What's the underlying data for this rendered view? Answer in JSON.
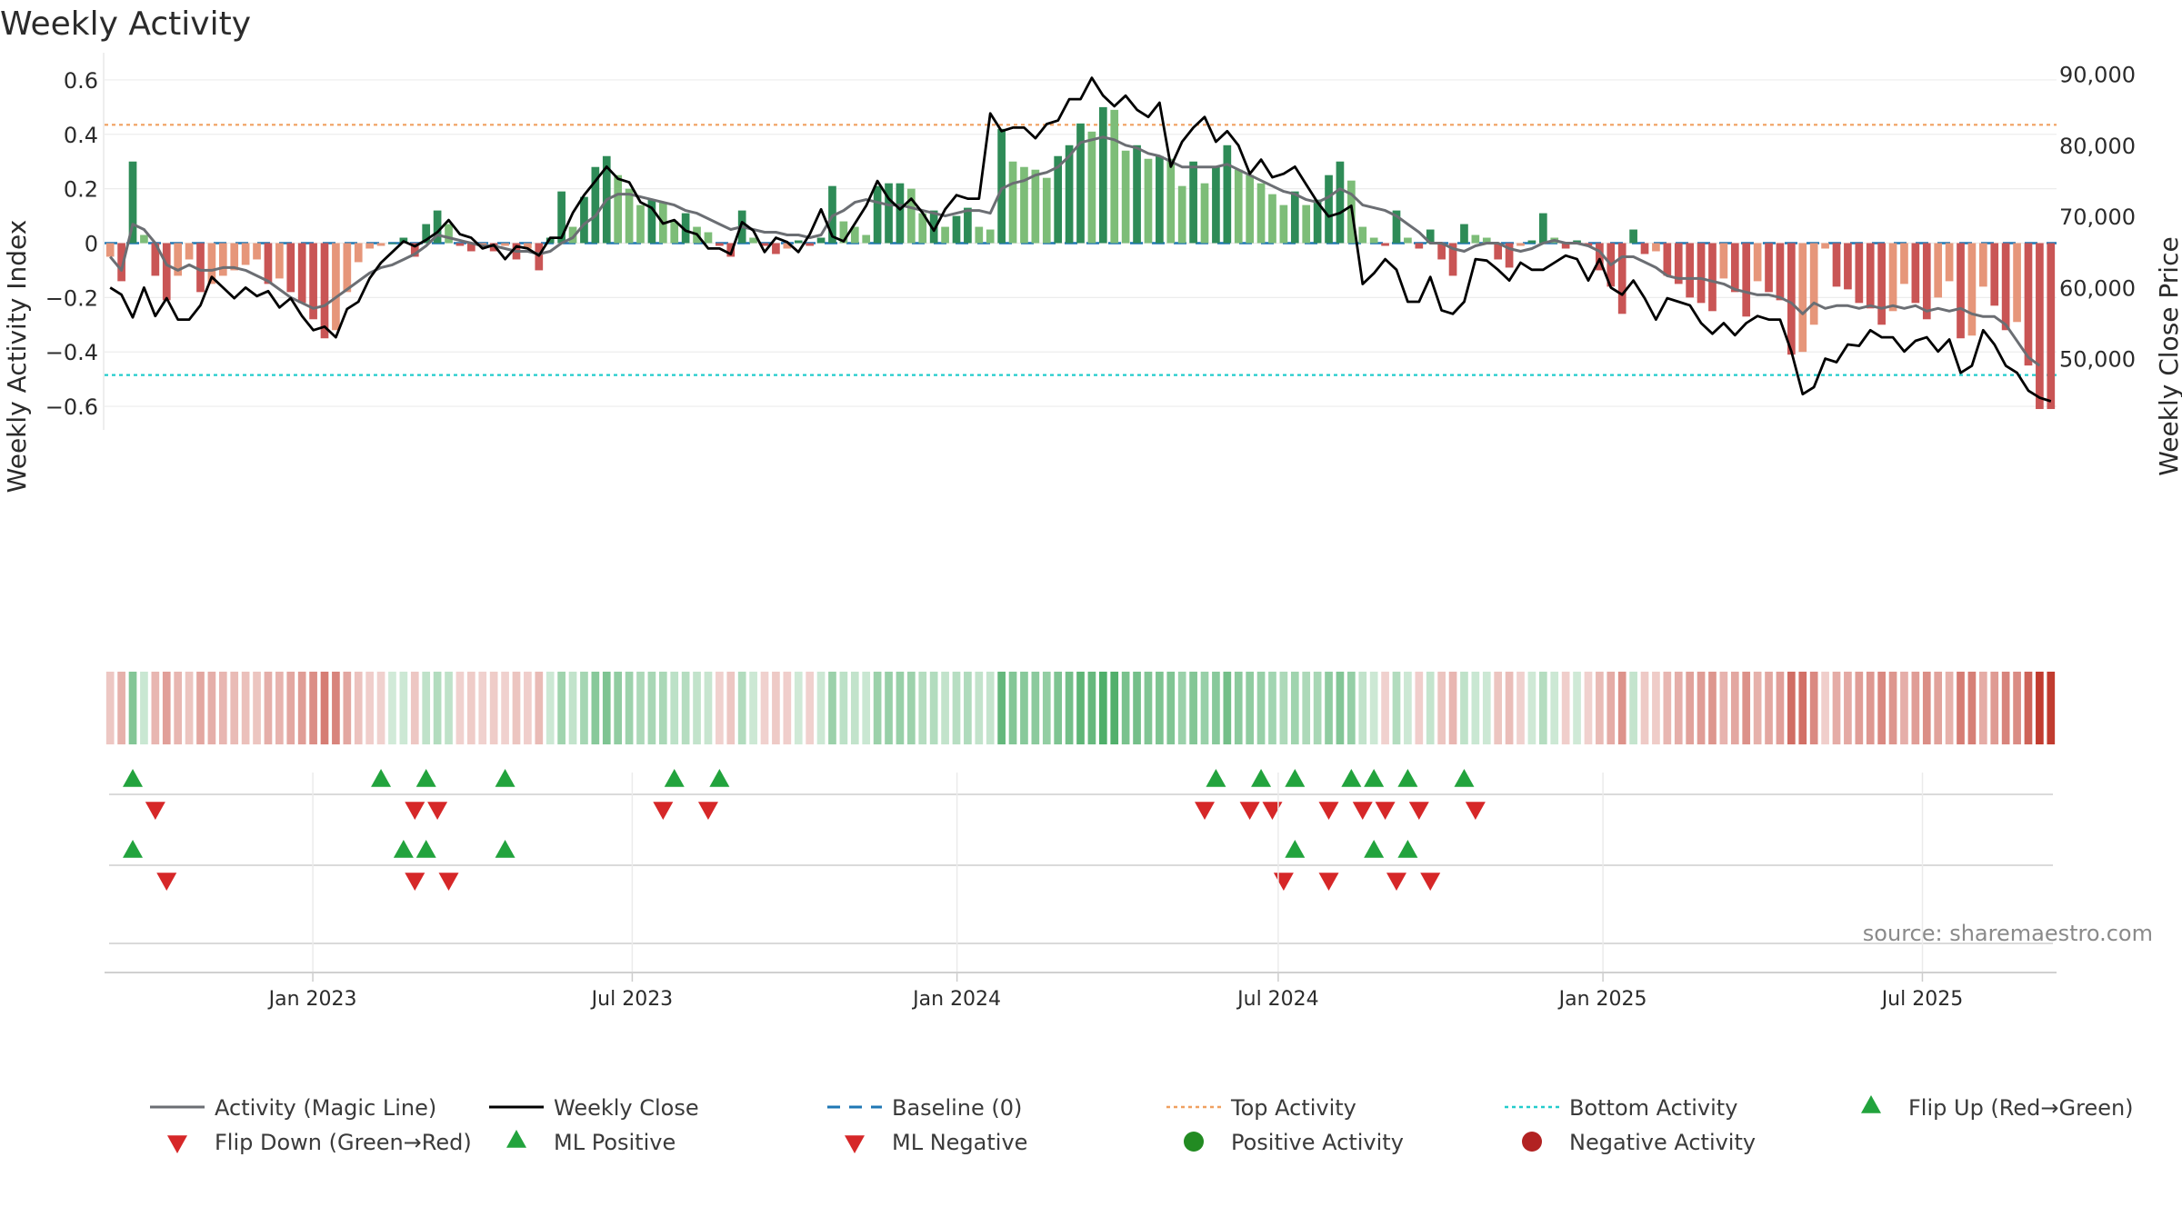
{
  "chart_data": {
    "type": "combo",
    "title": "Weekly Activity",
    "ylabel_left": "Weekly Activity Index",
    "ylabel_right": "Weekly Close Price",
    "ylim_left": [
      -0.66,
      0.66
    ],
    "ylim_right": [
      41000,
      91500
    ],
    "yticks_left": [
      0.6,
      0.4,
      0.2,
      0,
      -0.2,
      -0.4,
      -0.6
    ],
    "yticks_left_labels": [
      "0.6",
      "0.4",
      "0.2",
      "0",
      "−0.2",
      "−0.4",
      "−0.6"
    ],
    "yticks_right": [
      90000,
      80000,
      70000,
      60000,
      50000
    ],
    "yticks_right_labels": [
      "90,000",
      "80,000",
      "70,000",
      "60,000",
      "50,000"
    ],
    "x_start": "2022-09-05",
    "x_end": "2025-09-15",
    "xticks": [
      {
        "date": "2023-01-01",
        "label": "Jan 2023"
      },
      {
        "date": "2023-07-01",
        "label": "Jul 2023"
      },
      {
        "date": "2024-01-01",
        "label": "Jan 2024"
      },
      {
        "date": "2024-07-01",
        "label": "Jul 2024"
      },
      {
        "date": "2025-01-01",
        "label": "Jan 2025"
      },
      {
        "date": "2025-07-01",
        "label": "Jul 2025"
      }
    ],
    "top_activity": 0.435,
    "bottom_activity": -0.485,
    "baseline": 0,
    "colors": {
      "pos_strong": "#2e8b57",
      "pos_weak": "#7dbd78",
      "neg_strong": "#c95555",
      "neg_weak": "#e6967a",
      "magic_line": "#6b6e73",
      "close_line": "#000000",
      "baseline": "#1f77b4",
      "top_activity": "#f0a060",
      "bottom_activity": "#22cccc",
      "marker_up": "#22a33d",
      "marker_down": "#d62728",
      "positive_dot": "#228b22",
      "negative_dot": "#b22222"
    },
    "activity": [
      -0.05,
      -0.14,
      0.3,
      0.03,
      -0.12,
      -0.21,
      -0.12,
      -0.06,
      -0.18,
      -0.15,
      -0.12,
      -0.1,
      -0.08,
      -0.06,
      -0.15,
      -0.13,
      -0.18,
      -0.22,
      -0.28,
      -0.35,
      -0.32,
      -0.18,
      -0.07,
      -0.02,
      -0.01,
      0,
      0.02,
      -0.05,
      0.07,
      0.12,
      0.07,
      -0.01,
      -0.03,
      -0.01,
      -0.03,
      -0.01,
      -0.06,
      -0.02,
      -0.1,
      0.02,
      0.19,
      0.06,
      0.17,
      0.28,
      0.32,
      0.25,
      0.2,
      0.14,
      0.16,
      0.15,
      0.08,
      0.11,
      0.06,
      0.04,
      -0.01,
      -0.05,
      0.12,
      0.02,
      -0.01,
      -0.04,
      -0.02,
      0.01,
      -0.01,
      0.02,
      0.21,
      0.08,
      0.06,
      0.03,
      0.21,
      0.22,
      0.22,
      0.2,
      0.11,
      0.12,
      0.06,
      0.1,
      0.13,
      0.06,
      0.05,
      0.42,
      0.3,
      0.28,
      0.27,
      0.24,
      0.32,
      0.36,
      0.44,
      0.41,
      0.5,
      0.49,
      0.34,
      0.36,
      0.31,
      0.32,
      0.31,
      0.21,
      0.3,
      0.22,
      0.28,
      0.36,
      0.27,
      0.25,
      0.22,
      0.18,
      0.14,
      0.19,
      0.14,
      0.16,
      0.25,
      0.3,
      0.23,
      0.06,
      0.02,
      -0.01,
      0.12,
      0.02,
      -0.02,
      0.05,
      -0.06,
      -0.12,
      0.07,
      0.03,
      0.02,
      -0.06,
      -0.09,
      -0.01,
      0.01,
      0.11,
      0.02,
      -0.02,
      0.01,
      -0.01,
      -0.1,
      -0.16,
      -0.26,
      0.05,
      -0.04,
      -0.03,
      -0.12,
      -0.15,
      -0.2,
      -0.22,
      -0.25,
      -0.13,
      -0.18,
      -0.27,
      -0.14,
      -0.18,
      -0.21,
      -0.41,
      -0.4,
      -0.3,
      -0.02,
      -0.16,
      -0.17,
      -0.22,
      -0.24,
      -0.3,
      -0.25,
      -0.15,
      -0.22,
      -0.28,
      -0.2,
      -0.14,
      -0.35,
      -0.34,
      -0.16,
      -0.23,
      -0.32,
      -0.29,
      -0.45,
      -0.61,
      -0.61
    ],
    "magic_line": [
      -0.05,
      -0.1,
      0.07,
      0.05,
      0.0,
      -0.08,
      -0.1,
      -0.08,
      -0.1,
      -0.1,
      -0.09,
      -0.09,
      -0.1,
      -0.12,
      -0.14,
      -0.17,
      -0.2,
      -0.22,
      -0.24,
      -0.23,
      -0.2,
      -0.17,
      -0.14,
      -0.11,
      -0.09,
      -0.08,
      -0.06,
      -0.04,
      -0.01,
      0.03,
      0.02,
      0.01,
      0.0,
      -0.01,
      -0.01,
      -0.02,
      -0.03,
      -0.03,
      -0.04,
      -0.03,
      0.0,
      0.02,
      0.07,
      0.1,
      0.16,
      0.18,
      0.18,
      0.17,
      0.16,
      0.15,
      0.14,
      0.12,
      0.11,
      0.09,
      0.07,
      0.05,
      0.06,
      0.05,
      0.04,
      0.04,
      0.03,
      0.03,
      0.02,
      0.03,
      0.1,
      0.12,
      0.15,
      0.16,
      0.15,
      0.14,
      0.14,
      0.13,
      0.12,
      0.11,
      0.1,
      0.11,
      0.12,
      0.12,
      0.11,
      0.2,
      0.22,
      0.23,
      0.25,
      0.26,
      0.28,
      0.32,
      0.37,
      0.38,
      0.39,
      0.38,
      0.36,
      0.35,
      0.33,
      0.32,
      0.3,
      0.28,
      0.28,
      0.28,
      0.28,
      0.29,
      0.27,
      0.25,
      0.23,
      0.21,
      0.19,
      0.18,
      0.16,
      0.15,
      0.17,
      0.2,
      0.18,
      0.14,
      0.13,
      0.12,
      0.1,
      0.07,
      0.04,
      0.0,
      0.0,
      -0.02,
      -0.03,
      -0.01,
      0.0,
      0.0,
      -0.02,
      -0.03,
      -0.02,
      0.0,
      0.01,
      0.0,
      0.0,
      -0.01,
      -0.03,
      -0.08,
      -0.05,
      -0.05,
      -0.07,
      -0.09,
      -0.12,
      -0.13,
      -0.13,
      -0.13,
      -0.14,
      -0.15,
      -0.17,
      -0.18,
      -0.19,
      -0.19,
      -0.2,
      -0.22,
      -0.26,
      -0.22,
      -0.24,
      -0.23,
      -0.23,
      -0.24,
      -0.23,
      -0.24,
      -0.23,
      -0.24,
      -0.23,
      -0.25,
      -0.24,
      -0.25,
      -0.24,
      -0.26,
      -0.27,
      -0.27,
      -0.3,
      -0.36,
      -0.42,
      -0.45
    ],
    "weekly_close": [
      60000,
      59000,
      55800,
      60000,
      56000,
      58500,
      55500,
      55500,
      57500,
      61500,
      60000,
      58500,
      60000,
      58800,
      59500,
      57200,
      58500,
      56000,
      54000,
      54500,
      53000,
      57000,
      58000,
      61300,
      63500,
      65000,
      66500,
      65800,
      66700,
      67800,
      69500,
      67500,
      67000,
      65500,
      66000,
      64000,
      65800,
      65500,
      64500,
      67000,
      67000,
      70500,
      73000,
      75000,
      77000,
      75300,
      74800,
      72000,
      71200,
      69000,
      69500,
      68000,
      67500,
      65500,
      65500,
      64700,
      69200,
      68000,
      65000,
      67000,
      66400,
      65000,
      67500,
      71000,
      67200,
      66500,
      69000,
      71500,
      75000,
      72500,
      71000,
      72500,
      70500,
      68000,
      71000,
      73000,
      72500,
      72500,
      84500,
      82000,
      82500,
      82500,
      81000,
      83000,
      83500,
      86500,
      86500,
      89500,
      87000,
      85500,
      87000,
      85000,
      84000,
      86000,
      77000,
      80500,
      82500,
      84000,
      80500,
      82000,
      80000,
      76000,
      78000,
      75500,
      76000,
      77000,
      74500,
      72000,
      70000,
      70500,
      71500,
      60500,
      62000,
      64000,
      62500,
      58000,
      58000,
      61500,
      56800,
      56300,
      58000,
      64000,
      63800,
      62500,
      61000,
      63500,
      62500,
      62500,
      63500,
      64500,
      64000,
      61000,
      64000,
      60000,
      59000,
      61000,
      58500,
      55500,
      58500,
      58000,
      57500,
      55000,
      53500,
      55000,
      53300,
      55000,
      56000,
      55500,
      55500,
      51000,
      45000,
      46000,
      50000,
      49500,
      52000,
      51800,
      54000,
      53000,
      53000,
      51000,
      52500,
      53000,
      51000,
      52700,
      48000,
      49000,
      54000,
      52000,
      49000,
      48000,
      45500,
      44500,
      44000
    ]
  },
  "flip_rows": [
    {
      "up": [
        2,
        24,
        28,
        35,
        50,
        54,
        98,
        102,
        105,
        110,
        112,
        115,
        120
      ],
      "down": [
        4,
        27,
        29,
        49,
        53,
        97,
        101,
        103,
        108,
        111,
        113,
        116,
        121
      ]
    },
    {
      "up": [
        2,
        26,
        28,
        35,
        105,
        112,
        115
      ],
      "down": [
        5,
        27,
        30,
        104,
        108,
        114,
        117
      ]
    },
    {
      "up": [],
      "down": []
    }
  ],
  "source": "source: sharemaestro.com",
  "legend": [
    "Activity (Magic Line)",
    "Weekly Close",
    "Baseline (0)",
    "Top Activity",
    "Bottom Activity",
    "Flip Up (Red→Green)",
    "Flip Down (Green→Red)",
    "ML Positive",
    "ML Negative",
    "Positive Activity",
    "Negative Activity"
  ]
}
